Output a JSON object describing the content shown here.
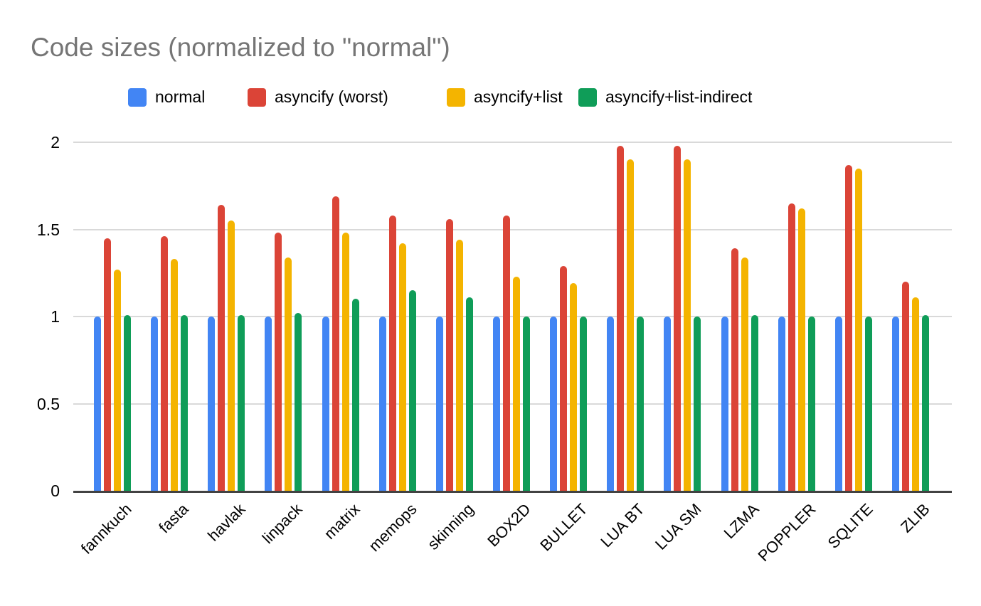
{
  "chart_data": {
    "type": "bar",
    "title": "Code sizes (normalized to \"normal\")",
    "xlabel": "",
    "ylabel": "",
    "ylim": [
      0,
      2
    ],
    "yticks": [
      {
        "value": 0,
        "label": "0"
      },
      {
        "value": 0.5,
        "label": "0.5"
      },
      {
        "value": 1,
        "label": "1"
      },
      {
        "value": 1.5,
        "label": "1.5"
      },
      {
        "value": 2,
        "label": "2"
      }
    ],
    "grid": "horizontal",
    "legend_position": "top",
    "categories": [
      "fannkuch",
      "fasta",
      "havlak",
      "linpack",
      "matrix",
      "memops",
      "skinning",
      "BOX2D",
      "BULLET",
      "LUA BT",
      "LUA SM",
      "LZMA",
      "POPPLER",
      "SQLITE",
      "ZLIB"
    ],
    "series": [
      {
        "name": "normal",
        "color": "#4285F4",
        "values": [
          1.0,
          1.0,
          1.0,
          1.0,
          1.0,
          1.0,
          1.0,
          1.0,
          1.0,
          1.0,
          1.0,
          1.0,
          1.0,
          1.0,
          1.0
        ]
      },
      {
        "name": "asyncify (worst)",
        "color": "#DB4437",
        "values": [
          1.45,
          1.46,
          1.64,
          1.48,
          1.69,
          1.58,
          1.56,
          1.58,
          1.29,
          1.98,
          1.98,
          1.39,
          1.65,
          1.87,
          1.2
        ]
      },
      {
        "name": "asyncify+list",
        "color": "#F4B400",
        "values": [
          1.27,
          1.33,
          1.55,
          1.34,
          1.48,
          1.42,
          1.44,
          1.23,
          1.19,
          1.9,
          1.9,
          1.34,
          1.62,
          1.85,
          1.11
        ]
      },
      {
        "name": "asyncify+list-indirect",
        "color": "#0F9D58",
        "values": [
          1.01,
          1.01,
          1.01,
          1.02,
          1.1,
          1.15,
          1.11,
          1.0,
          1.0,
          1.0,
          1.0,
          1.01,
          1.0,
          1.0,
          1.01
        ]
      }
    ],
    "colors": {
      "title_text": "#757575",
      "axis_text": "#000000",
      "gridline": "#d9d9d9",
      "baseline": "#424242",
      "background": "#ffffff"
    }
  }
}
